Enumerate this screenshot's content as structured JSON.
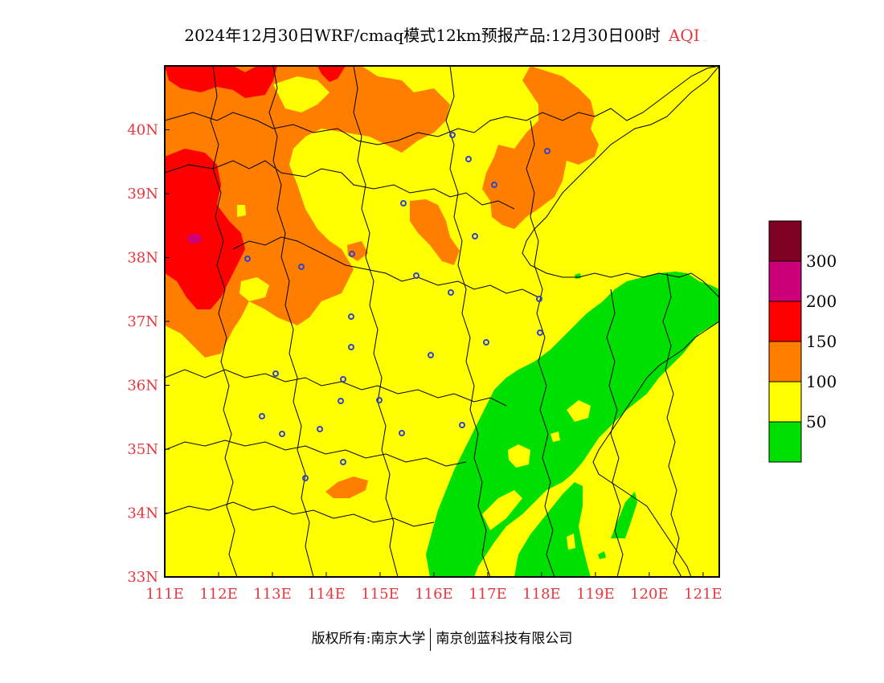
{
  "title": {
    "main": "2024年12月30日WRF/cmaq模式12km预报产品:12月30日00时",
    "variable": "AQI"
  },
  "map": {
    "x_ticks": [
      "111E",
      "112E",
      "113E",
      "114E",
      "115E",
      "116E",
      "117E",
      "118E",
      "119E",
      "120E",
      "121E"
    ],
    "y_ticks": [
      "33N",
      "34N",
      "35N",
      "36N",
      "37N",
      "38N",
      "39N",
      "40N"
    ],
    "lon_range": [
      111,
      121.3
    ],
    "lat_range": [
      33,
      41
    ]
  },
  "legend": {
    "items": [
      {
        "color": "#00e000",
        "label": "50"
      },
      {
        "color": "#ffff00",
        "label": "100"
      },
      {
        "color": "#ff7e00",
        "label": "150"
      },
      {
        "color": "#ff0000",
        "label": "200"
      },
      {
        "color": "#cc0077",
        "label": "300"
      },
      {
        "color": "#7e0023",
        "label": ""
      }
    ]
  },
  "footer": {
    "left": "版权所有:南京大学",
    "right": "南京创蓝科技有限公司"
  }
}
